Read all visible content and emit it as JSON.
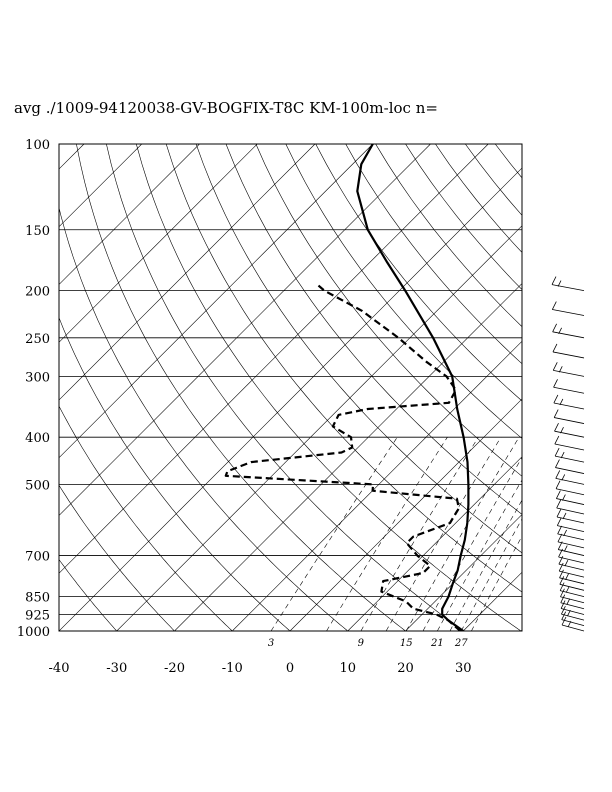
{
  "chart_data": {
    "type": "skewt",
    "title": "avg ./1009-94120038-GV-BOGFIX-T8C KM-100m-loc n=",
    "xlabel": "",
    "ylabel": "",
    "xlim": [
      -40,
      40
    ],
    "ylim": [
      1000,
      100
    ],
    "x_ticks": [
      "-40",
      "-30",
      "-20",
      "-10",
      "0",
      "10",
      "20",
      "30"
    ],
    "y_ticks": [
      "100",
      "150",
      "200",
      "250",
      "300",
      "400",
      "500",
      "700",
      "850",
      "925",
      "1000"
    ],
    "mixing_ratio_labels": [
      "3",
      "9",
      "15",
      "21",
      "27"
    ],
    "series": [
      {
        "kind": "temperature",
        "points": [
          [
            1000,
            30.0
          ],
          [
            950,
            25.5
          ],
          [
            925,
            23.5
          ],
          [
            900,
            22.5
          ],
          [
            850,
            21.5
          ],
          [
            800,
            20.0
          ],
          [
            750,
            18.5
          ],
          [
            700,
            16.5
          ],
          [
            650,
            14.5
          ],
          [
            600,
            12.0
          ],
          [
            550,
            9.0
          ],
          [
            500,
            5.5
          ],
          [
            450,
            1.5
          ],
          [
            400,
            -3.5
          ],
          [
            350,
            -9.5
          ],
          [
            300,
            -16.0
          ],
          [
            250,
            -26.0
          ],
          [
            200,
            -39.0
          ],
          [
            175,
            -47.0
          ],
          [
            150,
            -56.0
          ],
          [
            125,
            -64.5
          ],
          [
            110,
            -68.5
          ],
          [
            100,
            -70.0
          ]
        ]
      },
      {
        "kind": "dewpoint",
        "points": [
          [
            1000,
            29.5
          ],
          [
            975,
            27.5
          ],
          [
            950,
            25.5
          ],
          [
            925,
            22.5
          ],
          [
            900,
            17.5
          ],
          [
            870,
            15.0
          ],
          [
            830,
            9.0
          ],
          [
            790,
            7.5
          ],
          [
            760,
            13.0
          ],
          [
            735,
            13.0
          ],
          [
            700,
            9.0
          ],
          [
            660,
            5.0
          ],
          [
            640,
            5.0
          ],
          [
            600,
            9.0
          ],
          [
            560,
            8.0
          ],
          [
            535,
            6.0
          ],
          [
            515,
            -10.0
          ],
          [
            500,
            -11.0
          ],
          [
            480,
            -38.0
          ],
          [
            470,
            -38.5
          ],
          [
            450,
            -36.0
          ],
          [
            430,
            -22.0
          ],
          [
            420,
            -21.0
          ],
          [
            400,
            -23.0
          ],
          [
            380,
            -28.0
          ],
          [
            360,
            -29.0
          ],
          [
            350,
            -25.0
          ],
          [
            340,
            -12.0
          ],
          [
            320,
            -13.0
          ],
          [
            300,
            -17.0
          ],
          [
            280,
            -23.0
          ],
          [
            250,
            -32.0
          ],
          [
            220,
            -43.0
          ],
          [
            200,
            -53.0
          ],
          [
            195,
            -55.0
          ]
        ]
      }
    ],
    "wind_barbs": "right-side-column",
    "grid": true
  }
}
